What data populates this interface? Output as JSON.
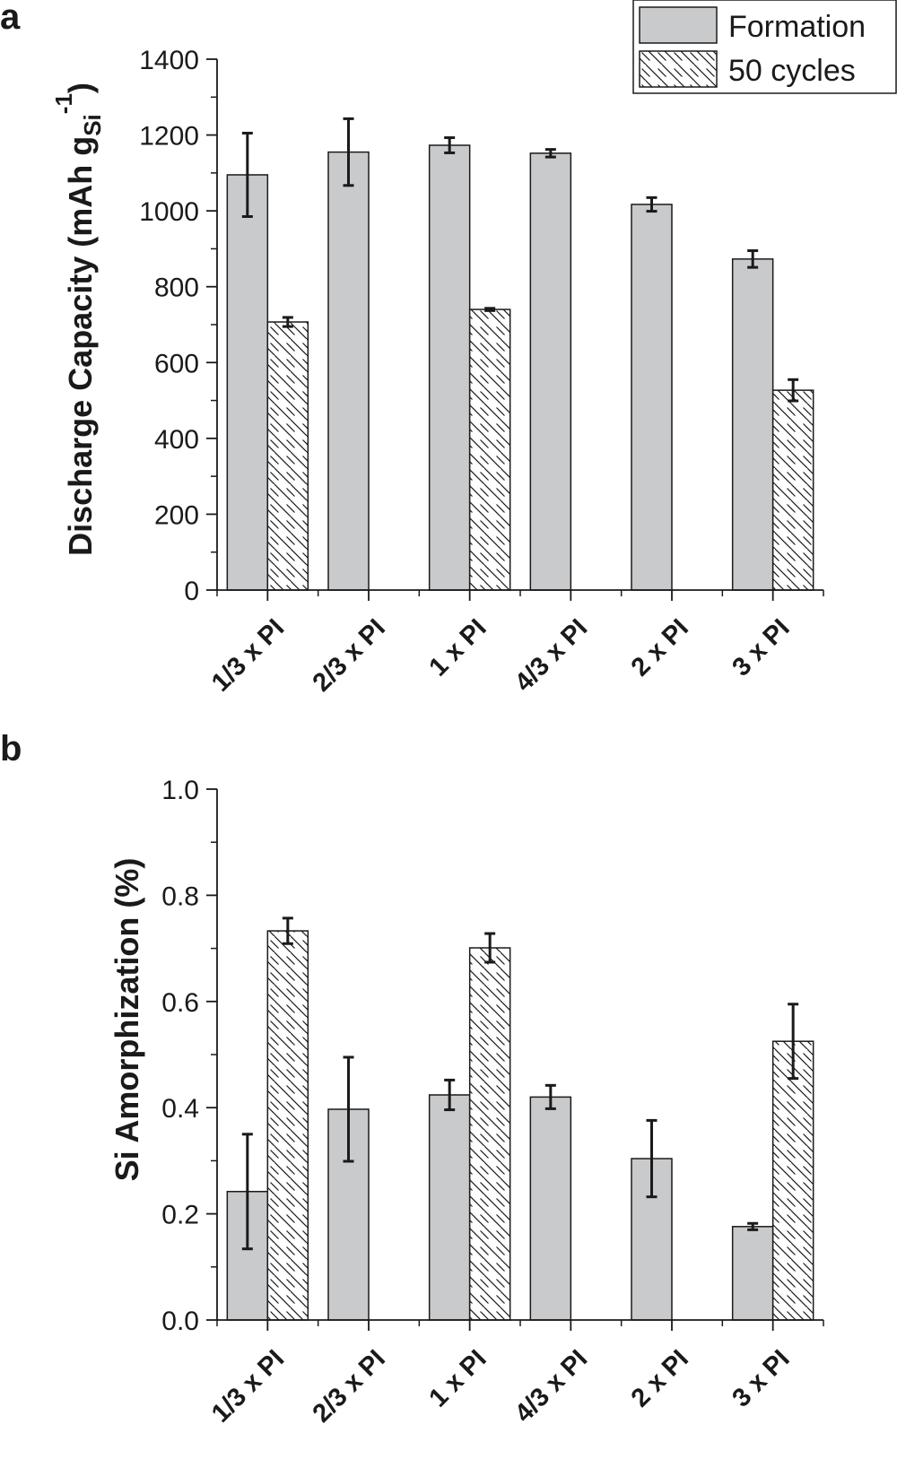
{
  "chart_data": [
    {
      "panel_label": "a",
      "type": "bar",
      "ylabel": {
        "main": "Discharge Capacity (mAh g",
        "sub": "Si",
        "sup": "-1",
        "close": ")"
      },
      "ylim": [
        0,
        1400
      ],
      "yticks": [
        "0",
        "200",
        "400",
        "600",
        "800",
        "1000",
        "1200",
        "1400"
      ],
      "categories": [
        "1/3 x PI",
        "2/3 x PI",
        "1 x PI",
        "4/3 x PI",
        "2 x PI",
        "3 x PI"
      ],
      "legend": {
        "position": "top-right",
        "items": [
          "Formation",
          "50 cycles"
        ]
      },
      "series": [
        {
          "name": "Formation",
          "fill": "#c9cacc",
          "pattern": "solid",
          "values": [
            1095,
            1155,
            1173,
            1152,
            1017,
            873
          ],
          "errors": [
            110,
            88,
            20,
            10,
            18,
            22
          ]
        },
        {
          "name": "50 cycles",
          "fill": "#ffffff",
          "pattern": "hatch",
          "values": [
            707,
            null,
            740,
            null,
            null,
            527
          ],
          "errors": [
            12,
            null,
            3,
            null,
            null,
            28
          ]
        }
      ]
    },
    {
      "panel_label": "b",
      "type": "bar",
      "ylabel": {
        "main": "Si Amorphization (%)"
      },
      "ylim": [
        0,
        1.0
      ],
      "yticks": [
        "0.0",
        "0.2",
        "0.4",
        "0.6",
        "0.8",
        "1.0"
      ],
      "categories": [
        "1/3 x PI",
        "2/3 x PI",
        "1 x PI",
        "4/3 x PI",
        "2 x PI",
        "3 x PI"
      ],
      "series": [
        {
          "name": "Formation",
          "fill": "#c9cacc",
          "pattern": "solid",
          "values": [
            0.242,
            0.397,
            0.424,
            0.42,
            0.304,
            0.176
          ],
          "errors": [
            0.108,
            0.098,
            0.028,
            0.022,
            0.072,
            0.006
          ]
        },
        {
          "name": "50 cycles",
          "fill": "#ffffff",
          "pattern": "hatch",
          "values": [
            0.733,
            null,
            0.701,
            null,
            null,
            0.525
          ],
          "errors": [
            0.024,
            null,
            0.027,
            null,
            null,
            0.07
          ]
        }
      ]
    }
  ]
}
